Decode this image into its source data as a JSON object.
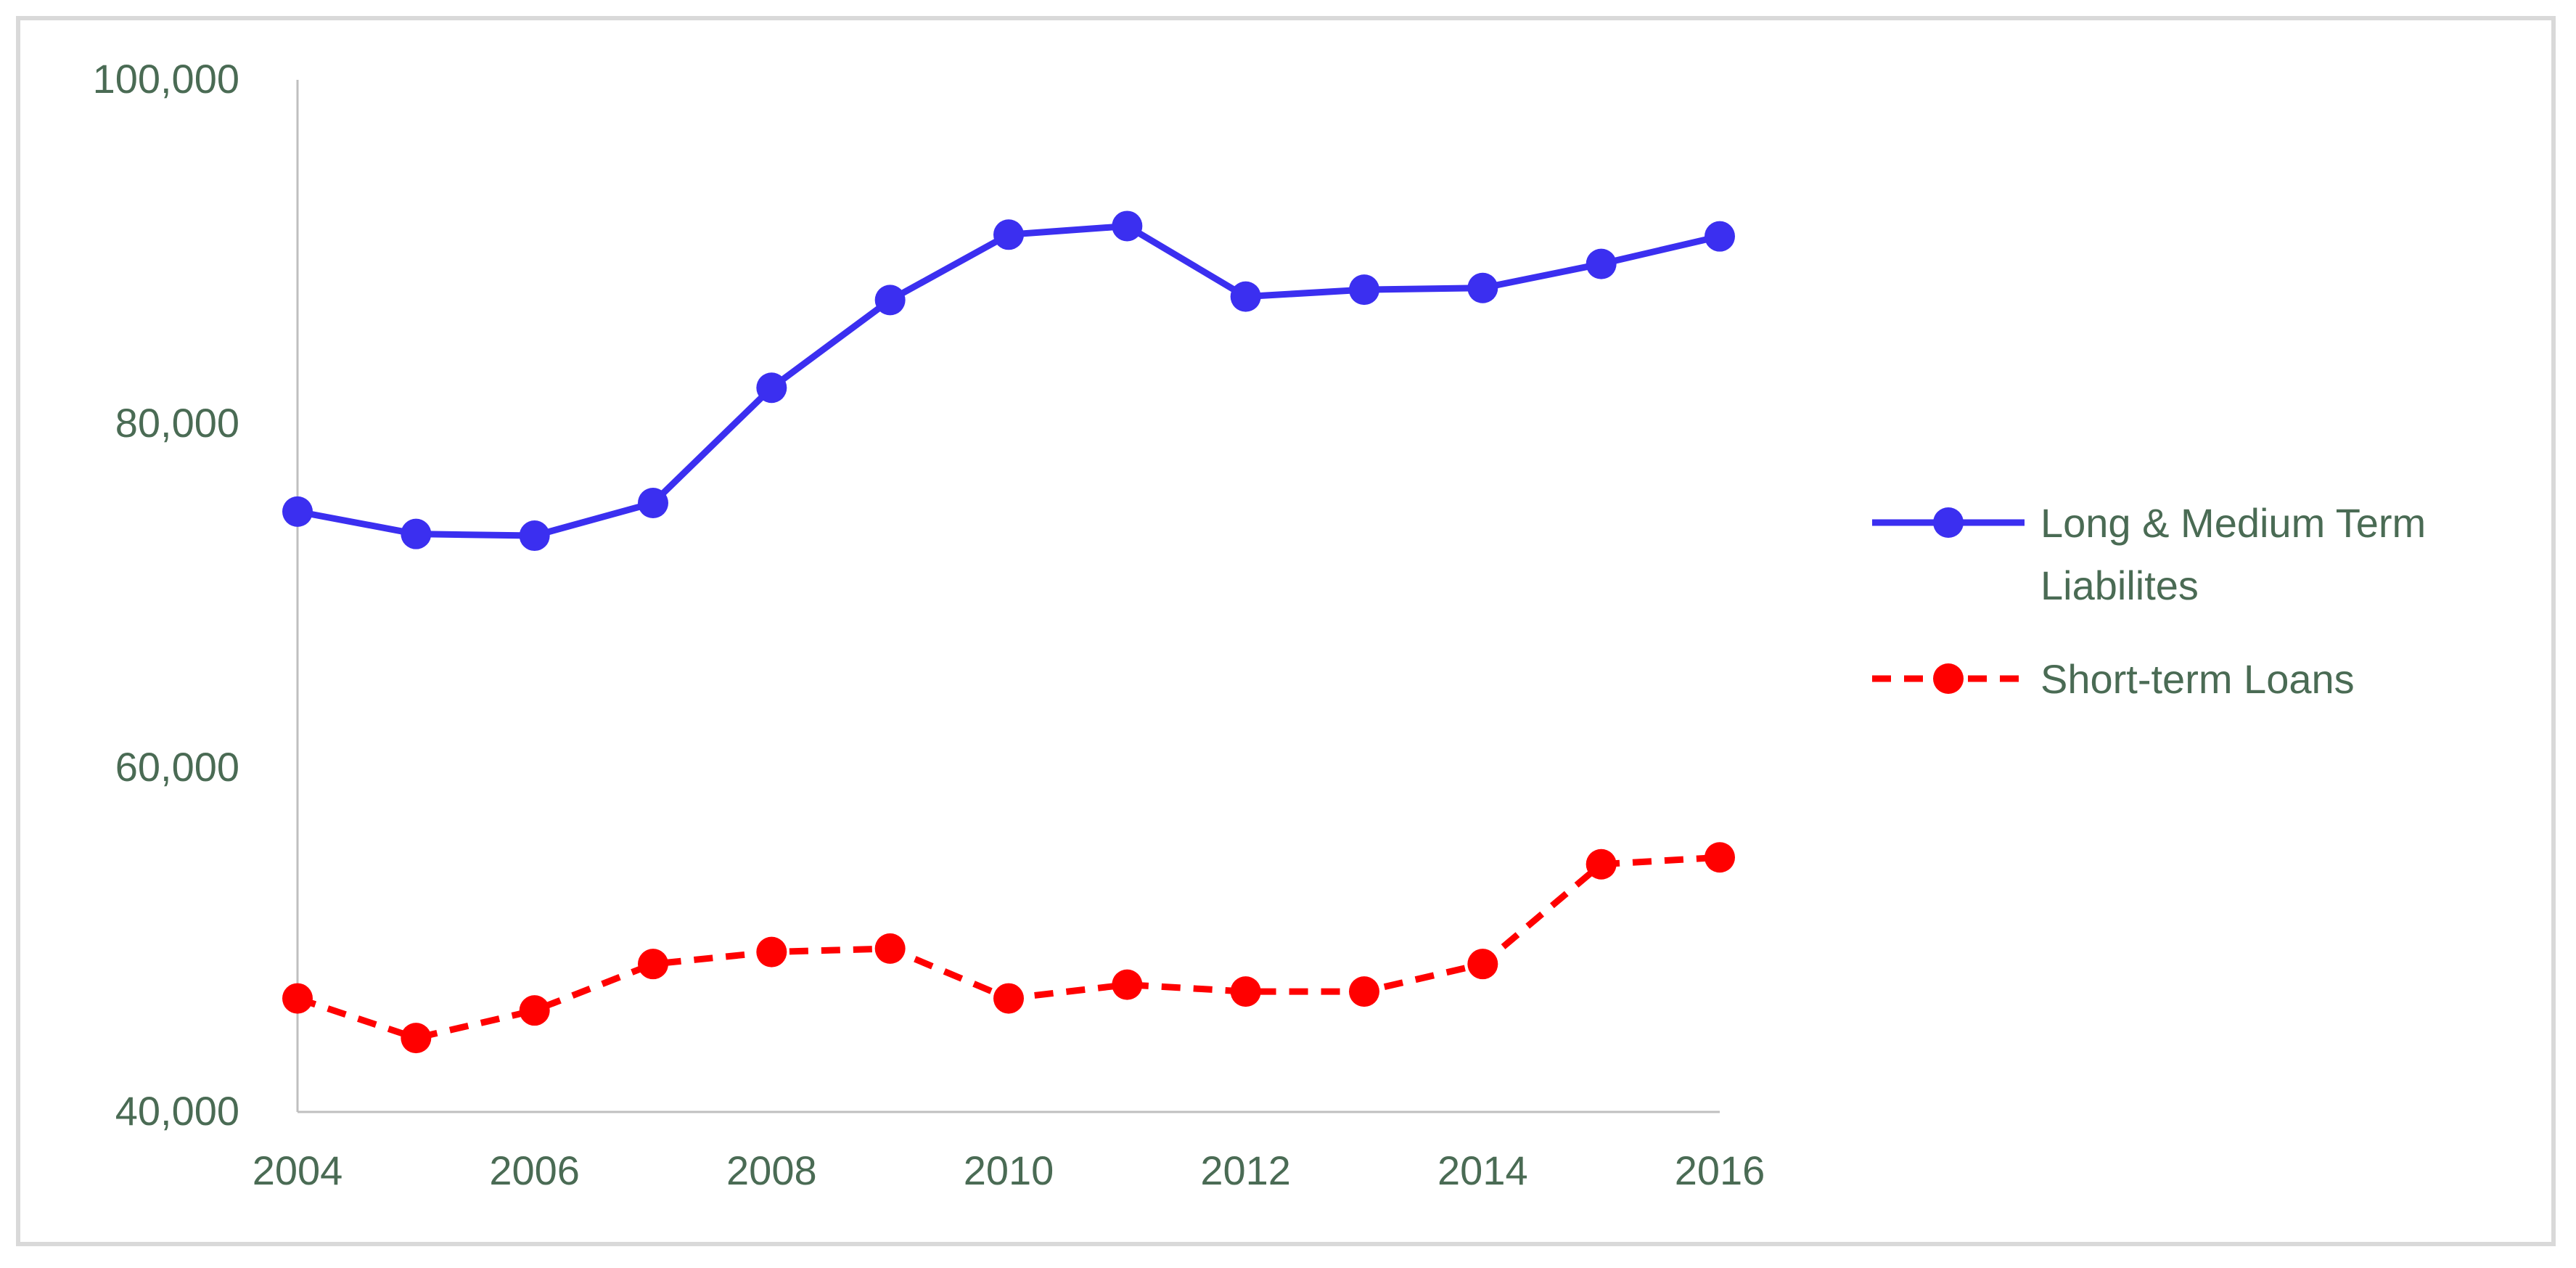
{
  "chart_data": {
    "type": "line",
    "title": "",
    "xlabel": "",
    "ylabel": "",
    "x": [
      2004,
      2005,
      2006,
      2007,
      2008,
      2009,
      2010,
      2011,
      2012,
      2013,
      2014,
      2015,
      2016
    ],
    "x_tick_labels": [
      "2004",
      "2006",
      "2008",
      "2010",
      "2012",
      "2014",
      "2016"
    ],
    "x_tick_values": [
      2004,
      2006,
      2008,
      2010,
      2012,
      2014,
      2016
    ],
    "xlim": [
      2004,
      2016
    ],
    "y_tick_labels": [
      "40,000",
      "60,000",
      "80,000",
      "100,000"
    ],
    "y_tick_values": [
      40000,
      60000,
      80000,
      100000
    ],
    "ylim": [
      40000,
      100000
    ],
    "grid": false,
    "legend_position": "right",
    "series": [
      {
        "name_lines": [
          "Long & Medium Term",
          "Liabilites"
        ],
        "name": "Long & Medium Term Liabilites",
        "color": "#3b2ff0",
        "line_style": "solid",
        "marker": "circle",
        "values": [
          74900,
          73600,
          73500,
          75400,
          82100,
          87200,
          91000,
          91500,
          87400,
          87800,
          87900,
          89300,
          90900
        ]
      },
      {
        "name": "Short-term Loans",
        "color": "#ff0000",
        "line_style": "dashed",
        "marker": "circle",
        "values": [
          46600,
          44300,
          45900,
          48600,
          49300,
          49500,
          46600,
          47400,
          47000,
          47000,
          48600,
          54400,
          54800
        ]
      }
    ]
  }
}
